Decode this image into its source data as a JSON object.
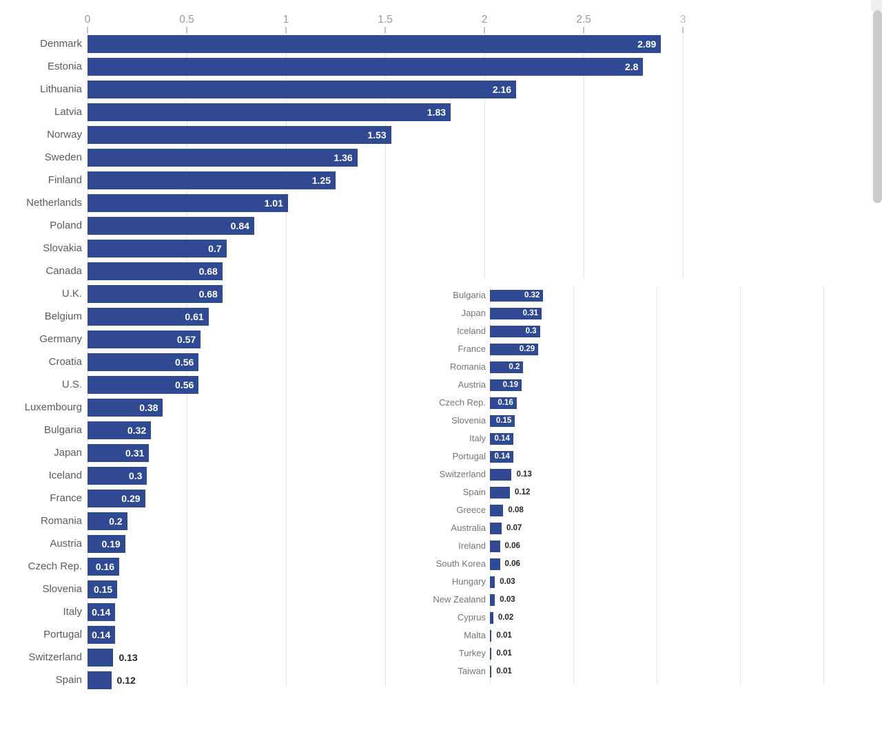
{
  "colors": {
    "bar": "#2f4a93",
    "grid": "#e5e5e9",
    "axis_tick": "#c3c3c8",
    "axis_label": "#97979c",
    "main_category_label": "#585b63",
    "inset_category_label": "#72757d",
    "value_inside": "#ffffff",
    "value_outside": "#242529",
    "scrollbar_thumb": "#cbcbce",
    "scrollbar_track_top": "#efeff1",
    "background": "#ffffff"
  },
  "scrollbar": {
    "visible": true
  },
  "chart_data": [
    {
      "id": "main",
      "type": "bar",
      "orientation": "horizontal",
      "grid": true,
      "legend": false,
      "xlim": [
        0,
        3
      ],
      "axis_ticks": [
        0,
        0.5,
        1,
        1.5,
        2,
        2.5,
        3
      ],
      "axis_tick_labels": [
        "0",
        "0.5",
        "1",
        "1.5",
        "2",
        "2.5",
        "3"
      ],
      "gridline_values": [
        0,
        0.5,
        1,
        1.5,
        2,
        2.5,
        3
      ],
      "categories": [
        "Denmark",
        "Estonia",
        "Lithuania",
        "Latvia",
        "Norway",
        "Sweden",
        "Finland",
        "Netherlands",
        "Poland",
        "Slovakia",
        "Canada",
        "U.K.",
        "Belgium",
        "Germany",
        "Croatia",
        "U.S.",
        "Luxembourg",
        "Bulgaria",
        "Japan",
        "Iceland",
        "France",
        "Romania",
        "Austria",
        "Czech Rep.",
        "Slovenia",
        "Italy",
        "Portugal",
        "Switzerland",
        "Spain"
      ],
      "values": [
        2.89,
        2.8,
        2.16,
        1.83,
        1.53,
        1.36,
        1.25,
        1.01,
        0.84,
        0.7,
        0.68,
        0.68,
        0.61,
        0.57,
        0.56,
        0.56,
        0.38,
        0.32,
        0.31,
        0.3,
        0.29,
        0.2,
        0.19,
        0.16,
        0.15,
        0.14,
        0.14,
        0.13,
        0.12
      ]
    },
    {
      "id": "inset",
      "type": "bar",
      "orientation": "horizontal",
      "grid": true,
      "legend": false,
      "xlim": [
        0,
        2.26
      ],
      "axis_ticks": [],
      "axis_tick_labels": [],
      "gridline_values": [
        0,
        0.5,
        1,
        1.5,
        2
      ],
      "categories": [
        "Bulgaria",
        "Japan",
        "Iceland",
        "France",
        "Romania",
        "Austria",
        "Czech Rep.",
        "Slovenia",
        "Italy",
        "Portugal",
        "Switzerland",
        "Spain",
        "Greece",
        "Australia",
        "Ireland",
        "South Korea",
        "Hungary",
        "New Zealand",
        "Cyprus",
        "Malta",
        "Turkey",
        "Taiwan"
      ],
      "values": [
        0.32,
        0.31,
        0.3,
        0.29,
        0.2,
        0.19,
        0.16,
        0.15,
        0.14,
        0.14,
        0.13,
        0.12,
        0.08,
        0.07,
        0.06,
        0.06,
        0.03,
        0.03,
        0.02,
        0.01,
        0.01,
        0.01
      ]
    }
  ]
}
